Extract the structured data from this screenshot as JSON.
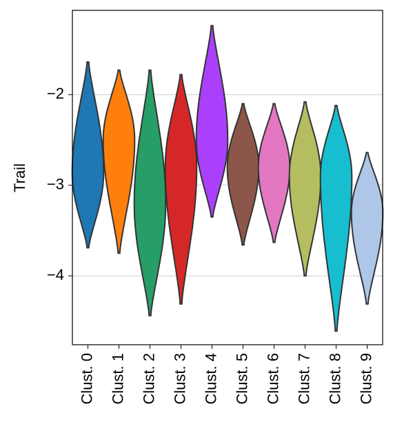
{
  "chart_data": {
    "type": "violin",
    "y_label": "Trail",
    "categories": [
      "Clust. 0",
      "Clust. 1",
      "Clust. 2",
      "Clust. 3",
      "Clust. 4",
      "Clust. 5",
      "Clust. 6",
      "Clust. 7",
      "Clust. 8",
      "Clust. 9"
    ],
    "colors": [
      "#1f77b4",
      "#ff7f0e",
      "#279e68",
      "#d62728",
      "#aa40fc",
      "#8c564b",
      "#e377c2",
      "#b5bd61",
      "#17becf",
      "#aec7e8"
    ],
    "min": [
      -3.69,
      -3.75,
      -4.44,
      -4.31,
      -3.35,
      -3.66,
      -3.63,
      -4.0,
      -4.61,
      -4.31
    ],
    "mode": [
      -2.86,
      -2.5,
      -3.2,
      -2.8,
      -2.5,
      -2.8,
      -2.8,
      -2.9,
      -2.9,
      -3.3
    ],
    "max": [
      -1.64,
      -1.73,
      -1.73,
      -1.78,
      -1.24,
      -2.1,
      -2.1,
      -2.08,
      -2.12,
      -2.64
    ],
    "ylim": [
      -4.76,
      -1.07
    ],
    "yticks": [
      {
        "value": -2,
        "label": "−2"
      },
      {
        "value": -3,
        "label": "−3"
      },
      {
        "value": -4,
        "label": "−4"
      }
    ],
    "grid": true
  }
}
